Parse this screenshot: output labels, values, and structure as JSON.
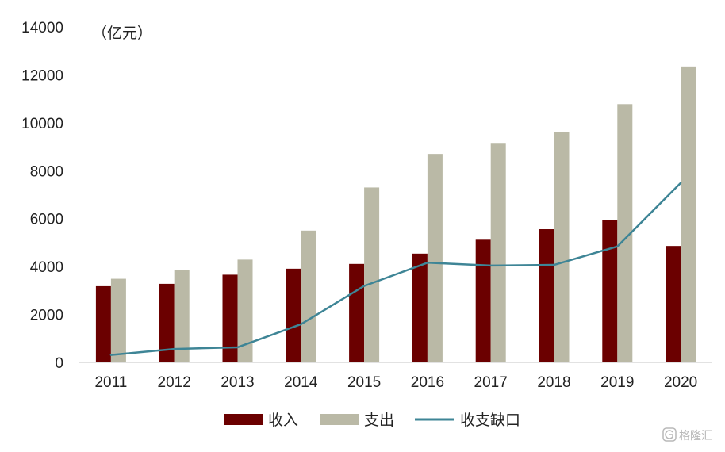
{
  "chart_data": {
    "type": "bar",
    "unit_label": "（亿元）",
    "categories": [
      "2011",
      "2012",
      "2013",
      "2014",
      "2015",
      "2016",
      "2017",
      "2018",
      "2019",
      "2020"
    ],
    "series": [
      {
        "name": "收入",
        "type": "bar",
        "color": "#6b0000",
        "values": [
          3180,
          3280,
          3660,
          3910,
          4110,
          4540,
          5120,
          5560,
          5940,
          4860
        ]
      },
      {
        "name": "支出",
        "type": "bar",
        "color": "#bab9a6",
        "values": [
          3490,
          3840,
          4290,
          5500,
          7300,
          8700,
          9160,
          9630,
          10780,
          12350
        ]
      },
      {
        "name": "收支缺口",
        "type": "line",
        "color": "#3e8596",
        "values": [
          310,
          560,
          630,
          1590,
          3190,
          4160,
          4040,
          4070,
          4840,
          7490
        ]
      }
    ],
    "ylim": [
      0,
      14000
    ],
    "yticks": [
      "0",
      "2000",
      "4000",
      "6000",
      "8000",
      "10000",
      "12000",
      "14000"
    ],
    "grid": false,
    "legend": "bottom-center"
  },
  "watermark": "格隆汇",
  "watermark_icon": "gelonghui-logo-icon"
}
